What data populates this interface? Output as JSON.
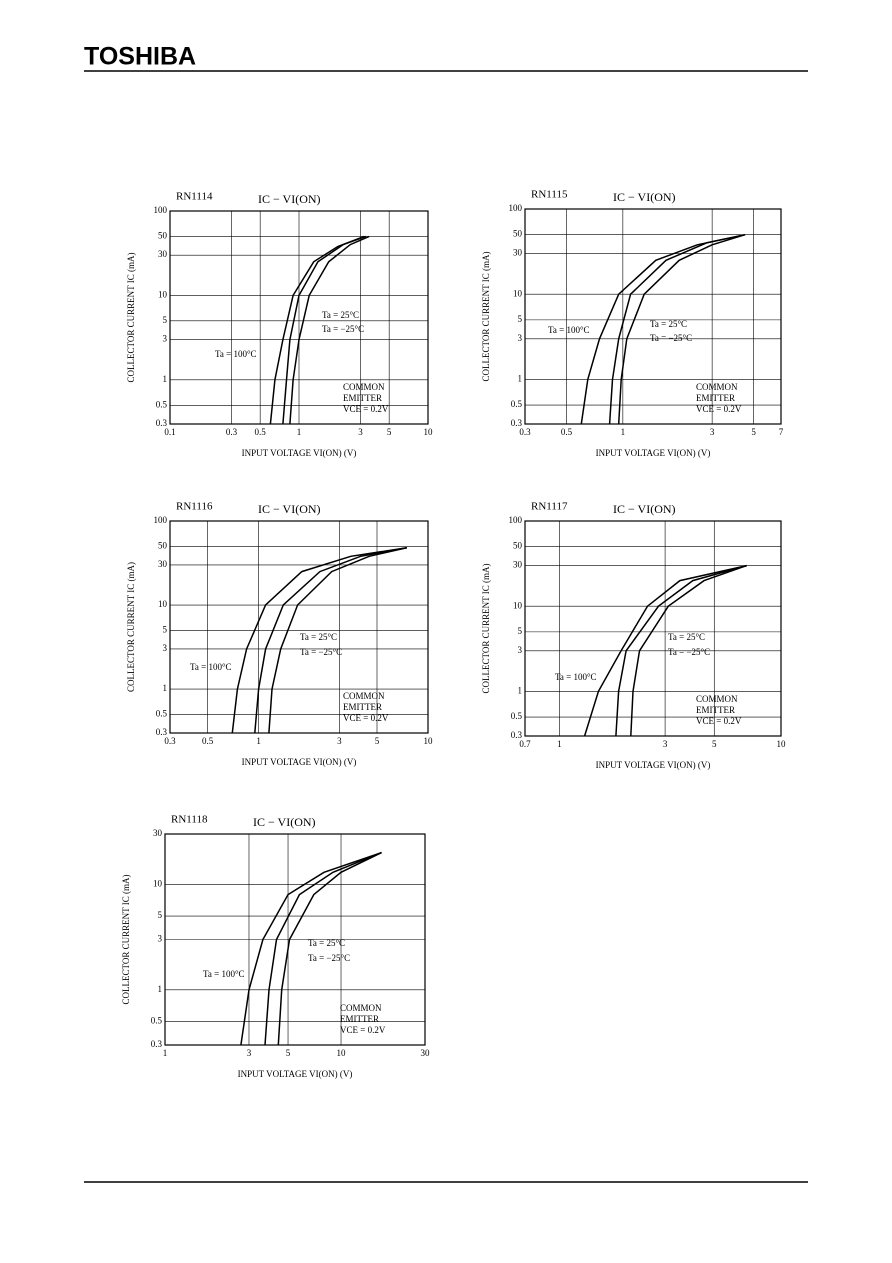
{
  "header": {
    "brand": "TOSHIBA"
  },
  "chart_data": [
    {
      "type": "line",
      "subtitle": "RN1114",
      "title": "IC − VI(ON)",
      "xlabel": "INPUT VOLTAGE VI(ON) (V)",
      "ylabel": "COLLECTOR CURRENT IC (mA)",
      "xscale": "log",
      "yscale": "log",
      "grid": true,
      "xlim": [
        0.1,
        10
      ],
      "xticks": [
        0.1,
        0.3,
        0.5,
        1,
        3,
        5,
        10
      ],
      "ylim": [
        0.3,
        100
      ],
      "yticks": [
        0.3,
        0.5,
        1,
        3,
        5,
        10,
        30,
        50,
        100
      ],
      "series": [
        {
          "name": "Ta = 100°C",
          "color": "#000000",
          "x": [
            0.6,
            0.65,
            0.75,
            0.9,
            1.3,
            2,
            3.2
          ],
          "values": [
            0.3,
            1,
            3,
            10,
            25,
            38,
            50
          ]
        },
        {
          "name": "Ta = 25°C",
          "color": "#000000",
          "x": [
            0.75,
            0.8,
            0.85,
            1.0,
            1.4,
            2.2,
            3.3
          ],
          "values": [
            0.3,
            1,
            3,
            10,
            25,
            40,
            50
          ]
        },
        {
          "name": "Ta = −25°C",
          "color": "#000000",
          "x": [
            0.85,
            0.9,
            1.0,
            1.2,
            1.7,
            2.5,
            3.5
          ],
          "values": [
            0.3,
            1,
            3,
            10,
            25,
            40,
            50
          ]
        }
      ],
      "annotations": [
        "COMMON",
        "EMITTER",
        "VCE = 0.2V"
      ]
    },
    {
      "type": "line",
      "subtitle": "RN1115",
      "title": "IC − VI(ON)",
      "xlabel": "INPUT VOLTAGE VI(ON) (V)",
      "ylabel": "COLLECTOR CURRENT IC (mA)",
      "xscale": "log",
      "yscale": "log",
      "grid": true,
      "xlim": [
        0.3,
        7
      ],
      "xticks": [
        0.3,
        0.5,
        1,
        3,
        5,
        7
      ],
      "ylim": [
        0.3,
        100
      ],
      "yticks": [
        0.3,
        0.5,
        1,
        3,
        5,
        10,
        30,
        50,
        100
      ],
      "series": [
        {
          "name": "Ta = 100°C",
          "color": "#000000",
          "x": [
            0.6,
            0.65,
            0.75,
            0.95,
            1.5,
            2.5,
            4.5
          ],
          "values": [
            0.3,
            1,
            3,
            10,
            25,
            38,
            50
          ]
        },
        {
          "name": "Ta = 25°C",
          "color": "#000000",
          "x": [
            0.85,
            0.88,
            0.95,
            1.1,
            1.7,
            2.8,
            4.5
          ],
          "values": [
            0.3,
            1,
            3,
            10,
            25,
            40,
            50
          ]
        },
        {
          "name": "Ta = −25°C",
          "color": "#000000",
          "x": [
            0.95,
            0.98,
            1.05,
            1.3,
            2,
            3,
            4.5
          ],
          "values": [
            0.3,
            1,
            3,
            10,
            25,
            38,
            50
          ]
        }
      ],
      "annotations": [
        "COMMON",
        "EMITTER",
        "VCE = 0.2V"
      ]
    },
    {
      "type": "line",
      "subtitle": "RN1116",
      "title": "IC − VI(ON)",
      "xlabel": "INPUT VOLTAGE VI(ON) (V)",
      "ylabel": "COLLECTOR CURRENT IC (mA)",
      "xscale": "log",
      "yscale": "log",
      "grid": true,
      "xlim": [
        0.3,
        10
      ],
      "xticks": [
        0.3,
        0.5,
        1,
        3,
        5,
        10
      ],
      "ylim": [
        0.3,
        100
      ],
      "yticks": [
        0.3,
        0.5,
        1,
        3,
        5,
        10,
        30,
        50,
        100
      ],
      "series": [
        {
          "name": "Ta = 100°C",
          "color": "#000000",
          "x": [
            0.7,
            0.75,
            0.85,
            1.1,
            1.8,
            3.5,
            7.5
          ],
          "values": [
            0.3,
            1,
            3,
            10,
            25,
            38,
            48
          ]
        },
        {
          "name": "Ta = 25°C",
          "color": "#000000",
          "x": [
            0.95,
            1,
            1.1,
            1.4,
            2.3,
            4,
            7.5
          ],
          "values": [
            0.3,
            1,
            3,
            10,
            25,
            38,
            48
          ]
        },
        {
          "name": "Ta = −25°C",
          "color": "#000000",
          "x": [
            1.15,
            1.2,
            1.35,
            1.7,
            2.7,
            4.5,
            7.5
          ],
          "values": [
            0.3,
            1,
            3,
            10,
            25,
            38,
            48
          ]
        }
      ],
      "annotations": [
        "COMMON",
        "EMITTER",
        "VCE = 0.2V"
      ]
    },
    {
      "type": "line",
      "subtitle": "RN1117",
      "title": "IC − VI(ON)",
      "xlabel": "INPUT VOLTAGE VI(ON) (V)",
      "ylabel": "COLLECTOR CURRENT IC (mA)",
      "xscale": "log",
      "yscale": "log",
      "grid": true,
      "xlim": [
        0.7,
        10
      ],
      "xticks": [
        0.7,
        1,
        3,
        5,
        10
      ],
      "ylim": [
        0.3,
        100
      ],
      "yticks": [
        0.3,
        0.5,
        1,
        3,
        5,
        10,
        30,
        50,
        100
      ],
      "series": [
        {
          "name": "Ta = 100°C",
          "color": "#000000",
          "x": [
            1.3,
            1.5,
            1.9,
            2.5,
            3.5,
            7
          ],
          "values": [
            0.3,
            1,
            3,
            10,
            20,
            30
          ]
        },
        {
          "name": "Ta = 25°C",
          "color": "#000000",
          "x": [
            1.8,
            1.85,
            2,
            2.8,
            4,
            7
          ],
          "values": [
            0.3,
            1,
            3,
            10,
            20,
            30
          ]
        },
        {
          "name": "Ta = −25°C",
          "color": "#000000",
          "x": [
            2.1,
            2.15,
            2.3,
            3.1,
            4.5,
            7
          ],
          "values": [
            0.3,
            1,
            3,
            10,
            20,
            30
          ]
        }
      ],
      "annotations": [
        "COMMON",
        "EMITTER",
        "VCE = 0.2V"
      ]
    },
    {
      "type": "line",
      "subtitle": "RN1118",
      "title": "IC − VI(ON)",
      "xlabel": "INPUT VOLTAGE VI(ON) (V)",
      "ylabel": "COLLECTOR CURRENT IC (mA)",
      "xscale": "log",
      "yscale": "log",
      "grid": true,
      "xlim": [
        1,
        30
      ],
      "xticks": [
        1,
        3,
        5,
        10,
        30
      ],
      "ylim": [
        0.3,
        30
      ],
      "yticks": [
        0.3,
        0.5,
        1,
        3,
        5,
        10,
        30
      ],
      "series": [
        {
          "name": "Ta = 100°C",
          "color": "#000000",
          "x": [
            2.7,
            3,
            3.6,
            5,
            8,
            17
          ],
          "values": [
            0.3,
            1,
            3,
            8,
            13,
            20
          ]
        },
        {
          "name": "Ta = 25°C",
          "color": "#000000",
          "x": [
            3.7,
            3.9,
            4.3,
            5.8,
            9,
            17
          ],
          "values": [
            0.3,
            1,
            3,
            8,
            13,
            20
          ]
        },
        {
          "name": "Ta = −25°C",
          "color": "#000000",
          "x": [
            4.4,
            4.6,
            5.1,
            7,
            10,
            17
          ],
          "values": [
            0.3,
            1,
            3,
            8,
            13,
            20
          ]
        }
      ],
      "annotations": [
        "COMMON",
        "EMITTER",
        "VCE = 0.2V"
      ]
    }
  ]
}
